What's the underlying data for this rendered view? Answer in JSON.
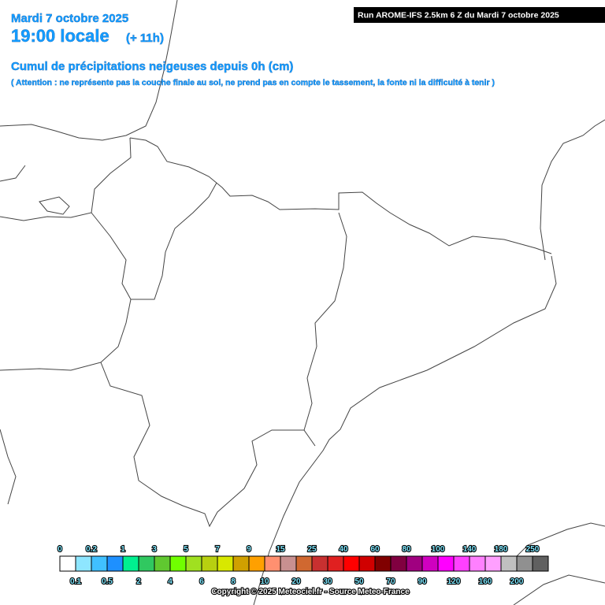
{
  "header": {
    "date": "Mardi 7 octobre 2025",
    "time": "19:00 locale",
    "lead": "(+ 11h)",
    "title": "Cumul de précipitations neigeuses depuis 0h (cm)",
    "note": "( Attention : ne représente pas la couche finale au sol, ne prend pas en compte le tassement, la fonte ni la difficulté à tenir )",
    "run": "Run AROME-IFS 2.5km 6 Z du Mardi 7 octobre 2025"
  },
  "legend": {
    "levels": [
      0,
      0.1,
      0.2,
      0.5,
      1,
      2,
      3,
      4,
      5,
      6,
      7,
      8,
      9,
      10,
      15,
      20,
      25,
      30,
      40,
      50,
      60,
      70,
      80,
      90,
      100,
      120,
      140,
      160,
      180,
      200,
      250
    ],
    "colors": [
      "#ffffff",
      "#8ee6ff",
      "#40c0ff",
      "#1e90ff",
      "#00f090",
      "#30c860",
      "#60c830",
      "#70ff00",
      "#a0e020",
      "#b8d010",
      "#d8e800",
      "#d0a000",
      "#ffa000",
      "#ff9070",
      "#c89090",
      "#d06830",
      "#c83030",
      "#e02020",
      "#ff0000",
      "#d00000",
      "#800000",
      "#800040",
      "#a00080",
      "#d000c0",
      "#ff00ff",
      "#ff40ff",
      "#ff80ff",
      "#ffa0ff",
      "#c0c0c0",
      "#909090",
      "#606060"
    ]
  },
  "footer": {
    "copyright": "Copyright © 2025 Meteociel.fr - Source Meteo-France"
  }
}
